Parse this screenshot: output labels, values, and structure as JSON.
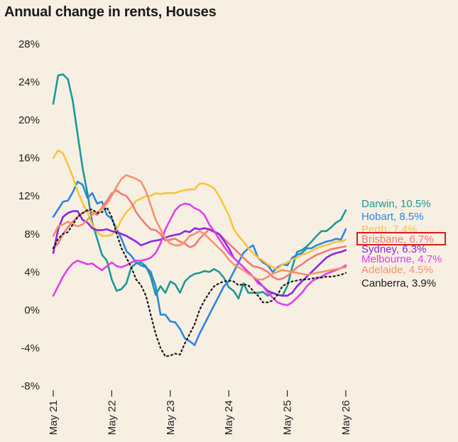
{
  "title": "Annual change in rents, Houses",
  "chart_data": {
    "type": "line",
    "title": "Annual change in rents, Houses",
    "xlabel": "",
    "ylabel": "",
    "ylim": [
      -8,
      28
    ],
    "y_ticks": [
      "28%",
      "24%",
      "20%",
      "16%",
      "12%",
      "8%",
      "4%",
      "0%",
      "-4%",
      "-8%"
    ],
    "y_tick_values": [
      28,
      24,
      20,
      16,
      12,
      8,
      4,
      0,
      -4,
      -8
    ],
    "x_ticks": [
      "May 21",
      "May 22",
      "May 23",
      "May 24",
      "May 25",
      "May 26"
    ],
    "x_tick_values": [
      0,
      12,
      24,
      36,
      48,
      60
    ],
    "highlighted_label": "Brisbane, 6.7%",
    "series": [
      {
        "name": "Darwin",
        "label": "Darwin, 10.5%",
        "color": "#1a9a96",
        "dashed": false,
        "x": [
          0,
          1,
          2,
          3,
          4,
          5,
          6,
          7,
          8,
          9,
          10,
          11,
          12,
          13,
          14,
          15,
          16,
          17,
          18,
          19,
          20,
          21,
          22,
          23,
          24,
          25,
          26,
          27,
          28,
          29,
          30,
          31,
          32,
          33,
          34,
          35,
          36,
          37,
          38,
          39,
          40,
          41,
          42,
          43,
          44,
          45,
          46,
          47,
          48,
          49,
          50,
          51,
          52,
          53,
          54,
          55,
          56,
          57,
          58,
          59,
          60
        ],
        "values": [
          21.7,
          24.7,
          24.8,
          24.3,
          22,
          18.5,
          15,
          12.3,
          9.2,
          7.5,
          5.8,
          5.2,
          3.2,
          2,
          2.2,
          2.8,
          4.5,
          4.9,
          5,
          4.6,
          3.5,
          1.6,
          2.5,
          1.8,
          3,
          2.7,
          1.8,
          3,
          3.5,
          3.8,
          3.9,
          4.1,
          4,
          4.3,
          4,
          3.4,
          2.4,
          2,
          1.2,
          2.8,
          1.8,
          1.8,
          1.8,
          1.9,
          1.5,
          1.8,
          1.6,
          1.5,
          2.5,
          4.5,
          6.1,
          6.3,
          6.7,
          7.2,
          7.8,
          8.3,
          8.3,
          8.7,
          9.2,
          9.5,
          10.5
        ]
      },
      {
        "name": "Hobart",
        "label": "Hobart, 8.5%",
        "color": "#2b86e0",
        "dashed": false,
        "x": [
          0,
          1,
          2,
          3,
          4,
          5,
          6,
          7,
          8,
          9,
          10,
          11,
          12,
          13,
          14,
          15,
          16,
          17,
          18,
          19,
          20,
          21,
          22,
          23,
          24,
          25,
          26,
          27,
          28,
          29,
          30,
          31,
          32,
          33,
          34,
          35,
          36,
          37,
          38,
          39,
          40,
          41,
          42,
          43,
          44,
          45,
          46,
          47,
          48,
          49,
          50,
          51,
          52,
          53,
          54,
          55,
          56,
          57,
          58,
          59,
          60
        ],
        "values": [
          9.8,
          10.6,
          11.4,
          11.5,
          12.4,
          13.5,
          13.2,
          11.8,
          12.3,
          11.2,
          11.4,
          10,
          9.6,
          8.5,
          7.5,
          6.2,
          5.7,
          5,
          4.7,
          4.5,
          4,
          2.5,
          -0.5,
          -0.5,
          -1.2,
          -1.3,
          -2,
          -3,
          -3.3,
          -3.7,
          -2.5,
          -1.5,
          -0.5,
          0.5,
          1.5,
          2.5,
          3,
          4,
          5,
          6,
          6.5,
          6.8,
          5.5,
          5,
          4.7,
          4,
          4.5,
          4.8,
          4.7,
          5.5,
          5.8,
          6,
          6.5,
          6.5,
          6.8,
          7,
          7.2,
          7.3,
          7.5,
          7.4,
          8.5
        ]
      },
      {
        "name": "Perth",
        "label": "Perth, 7.4%",
        "color": "#f7c53c",
        "dashed": false,
        "x": [
          0,
          1,
          2,
          3,
          4,
          5,
          6,
          7,
          8,
          9,
          10,
          11,
          12,
          13,
          14,
          15,
          16,
          17,
          18,
          19,
          20,
          21,
          22,
          23,
          24,
          25,
          26,
          27,
          28,
          29,
          30,
          31,
          32,
          33,
          34,
          35,
          36,
          37,
          38,
          39,
          40,
          41,
          42,
          43,
          44,
          45,
          46,
          47,
          48,
          49,
          50,
          51,
          52,
          53,
          54,
          55,
          56,
          57,
          58,
          59,
          60
        ],
        "values": [
          16,
          16.8,
          16.5,
          15.3,
          14,
          12.5,
          11.3,
          10.3,
          9,
          8.2,
          7.8,
          7.8,
          7.9,
          8.5,
          9.5,
          10.3,
          10.8,
          11.5,
          11.7,
          12,
          12,
          12.3,
          12.2,
          12.3,
          12.3,
          12.3,
          12.5,
          12.6,
          12.7,
          12.7,
          13.3,
          13.3,
          13.1,
          12.8,
          12,
          11,
          10,
          8.5,
          7.8,
          7.2,
          6.5,
          6,
          5.5,
          5.2,
          4.8,
          4.5,
          4.3,
          4.8,
          5,
          5.3,
          5.5,
          5.8,
          6,
          6.2,
          6.5,
          6.7,
          6.8,
          7,
          7.2,
          7.2,
          7.4
        ]
      },
      {
        "name": "Brisbane",
        "label": "Brisbane, 6.7%",
        "color": "#f37a74",
        "dashed": false,
        "x": [
          0,
          1,
          2,
          3,
          4,
          5,
          6,
          7,
          8,
          9,
          10,
          11,
          12,
          13,
          14,
          15,
          16,
          17,
          18,
          19,
          20,
          21,
          22,
          23,
          24,
          25,
          26,
          27,
          28,
          29,
          30,
          31,
          32,
          33,
          34,
          35,
          36,
          37,
          38,
          39,
          40,
          41,
          42,
          43,
          44,
          45,
          46,
          47,
          48,
          49,
          50,
          51,
          52,
          53,
          54,
          55,
          56,
          57,
          58,
          59,
          60
        ],
        "values": [
          6.5,
          7,
          8,
          8.7,
          9.3,
          9.8,
          10.2,
          10.5,
          10.3,
          10,
          10.8,
          11.5,
          12.3,
          12.6,
          12.2,
          12,
          11.3,
          10.3,
          9.6,
          9,
          8.5,
          8.4,
          8,
          7.3,
          7.4,
          7.5,
          7.2,
          7,
          6.6,
          6.8,
          7.5,
          8,
          8.5,
          8.3,
          8,
          7.5,
          7,
          6.5,
          6,
          5.5,
          5,
          4.6,
          4.5,
          4.3,
          4,
          3.5,
          3.2,
          3.3,
          3.6,
          4,
          4.5,
          4.8,
          5.2,
          5.5,
          5.8,
          6,
          6.2,
          6.4,
          6.5,
          6.6,
          6.7
        ]
      },
      {
        "name": "Sydney",
        "label": "Sydney, 6.3%",
        "color": "#8a27e0",
        "dashed": false,
        "x": [
          0,
          1,
          2,
          3,
          4,
          5,
          6,
          7,
          8,
          9,
          10,
          11,
          12,
          13,
          14,
          15,
          16,
          17,
          18,
          19,
          20,
          21,
          22,
          23,
          24,
          25,
          26,
          27,
          28,
          29,
          30,
          31,
          32,
          33,
          34,
          35,
          36,
          37,
          38,
          39,
          40,
          41,
          42,
          43,
          44,
          45,
          46,
          47,
          48,
          49,
          50,
          51,
          52,
          53,
          54,
          55,
          56,
          57,
          58,
          59,
          60
        ],
        "values": [
          6,
          8.5,
          9.8,
          10.2,
          10.4,
          10.4,
          9.5,
          9.2,
          8.6,
          8.4,
          8.4,
          8.5,
          8.3,
          8.2,
          8,
          7.8,
          7.5,
          7.2,
          6.8,
          7,
          7.2,
          7.3,
          7.4,
          7.6,
          7.8,
          7.9,
          8,
          8.3,
          8.2,
          8.6,
          8.5,
          8.6,
          8.5,
          8.2,
          8,
          7.3,
          6.5,
          5.5,
          5,
          4.5,
          4,
          3.5,
          3,
          2.5,
          2,
          1.8,
          1.6,
          1.5,
          1.5,
          1.8,
          2.5,
          3,
          3.5,
          4,
          4.5,
          5,
          5.5,
          5.8,
          6,
          6.1,
          6.3
        ]
      },
      {
        "name": "Melbourne",
        "label": "Melbourne, 4.7%",
        "color": "#e040ea",
        "dashed": false,
        "x": [
          0,
          1,
          2,
          3,
          4,
          5,
          6,
          7,
          8,
          9,
          10,
          11,
          12,
          13,
          14,
          15,
          16,
          17,
          18,
          19,
          20,
          21,
          22,
          23,
          24,
          25,
          26,
          27,
          28,
          29,
          30,
          31,
          32,
          33,
          34,
          35,
          36,
          37,
          38,
          39,
          40,
          41,
          42,
          43,
          44,
          45,
          46,
          47,
          48,
          49,
          50,
          51,
          52,
          53,
          54,
          55,
          56,
          57,
          58,
          59,
          60
        ],
        "values": [
          1.5,
          2.5,
          3.5,
          4.3,
          4.9,
          5.2,
          5,
          4.8,
          4.9,
          4.5,
          4.2,
          4.6,
          5,
          4.6,
          4.5,
          4.7,
          5,
          5.2,
          5.2,
          5.3,
          5.5,
          6,
          7,
          8.5,
          9.5,
          10.5,
          11,
          11.2,
          11.1,
          10.7,
          10.5,
          10,
          9,
          8.3,
          7.5,
          6.7,
          6,
          5.5,
          5,
          4.5,
          4,
          3.5,
          2.8,
          2.5,
          1.8,
          1.3,
          0.8,
          0.6,
          0.5,
          0.8,
          1.3,
          1.8,
          2.5,
          3,
          3.3,
          3.5,
          3.8,
          4,
          4.2,
          4.4,
          4.7
        ]
      },
      {
        "name": "Adelaide",
        "label": "Adelaide, 4.5%",
        "color": "#f5936b",
        "dashed": false,
        "x": [
          0,
          1,
          2,
          3,
          4,
          5,
          6,
          7,
          8,
          9,
          10,
          11,
          12,
          13,
          14,
          15,
          16,
          17,
          18,
          19,
          20,
          21,
          22,
          23,
          24,
          25,
          26,
          27,
          28,
          29,
          30,
          31,
          32,
          33,
          34,
          35,
          36,
          37,
          38,
          39,
          40,
          41,
          42,
          43,
          44,
          45,
          46,
          47,
          48,
          49,
          50,
          51,
          52,
          53,
          54,
          55,
          56,
          57,
          58,
          59,
          60
        ],
        "values": [
          7.8,
          8.8,
          9,
          9.3,
          9,
          8.8,
          9,
          9.5,
          10,
          10.3,
          10.6,
          11.2,
          12,
          13,
          13.8,
          14.2,
          14,
          13.8,
          13.5,
          12.5,
          11,
          9.5,
          8.5,
          7.5,
          7,
          6.8,
          6.8,
          7.2,
          7.8,
          8,
          8.3,
          8,
          7.5,
          7,
          6.5,
          6,
          5.3,
          4.8,
          4.5,
          4.2,
          3.8,
          3.5,
          3.2,
          3.2,
          3.5,
          3.8,
          4,
          4.2,
          4.1,
          4,
          3.9,
          3.8,
          3.7,
          3.8,
          3.9,
          4,
          4.1,
          4.2,
          4.3,
          4.4,
          4.5
        ]
      },
      {
        "name": "Canberra",
        "label": "Canberra, 3.9%",
        "color": "#1a1a1a",
        "dashed": true,
        "x": [
          0,
          1,
          2,
          3,
          4,
          5,
          6,
          7,
          8,
          9,
          10,
          11,
          12,
          13,
          14,
          15,
          16,
          17,
          18,
          19,
          20,
          21,
          22,
          23,
          24,
          25,
          26,
          27,
          28,
          29,
          30,
          31,
          32,
          33,
          34,
          35,
          36,
          37,
          38,
          39,
          40,
          41,
          42,
          43,
          44,
          45,
          46,
          47,
          48,
          49,
          50,
          51,
          52,
          53,
          54,
          55,
          56,
          57,
          58,
          59,
          60
        ],
        "values": [
          6.5,
          7.5,
          8,
          8.2,
          9,
          9.8,
          10.2,
          10.5,
          10.6,
          10.2,
          10.3,
          10.8,
          9.8,
          8,
          6.5,
          5.5,
          4.5,
          3.2,
          2.6,
          1.5,
          -0.5,
          -2.5,
          -4,
          -4.9,
          -4.8,
          -4.6,
          -4.7,
          -3.5,
          -2.5,
          -1.5,
          0,
          1,
          1.8,
          2.5,
          2.8,
          3,
          3.1,
          3,
          2.6,
          2.7,
          2.6,
          2,
          1.5,
          0.8,
          0.8,
          1,
          1.6,
          2.5,
          2.8,
          3,
          3.1,
          3.2,
          3.2,
          3.3,
          3.4,
          3.4,
          3.5,
          3.5,
          3.6,
          3.7,
          3.9
        ]
      }
    ]
  }
}
